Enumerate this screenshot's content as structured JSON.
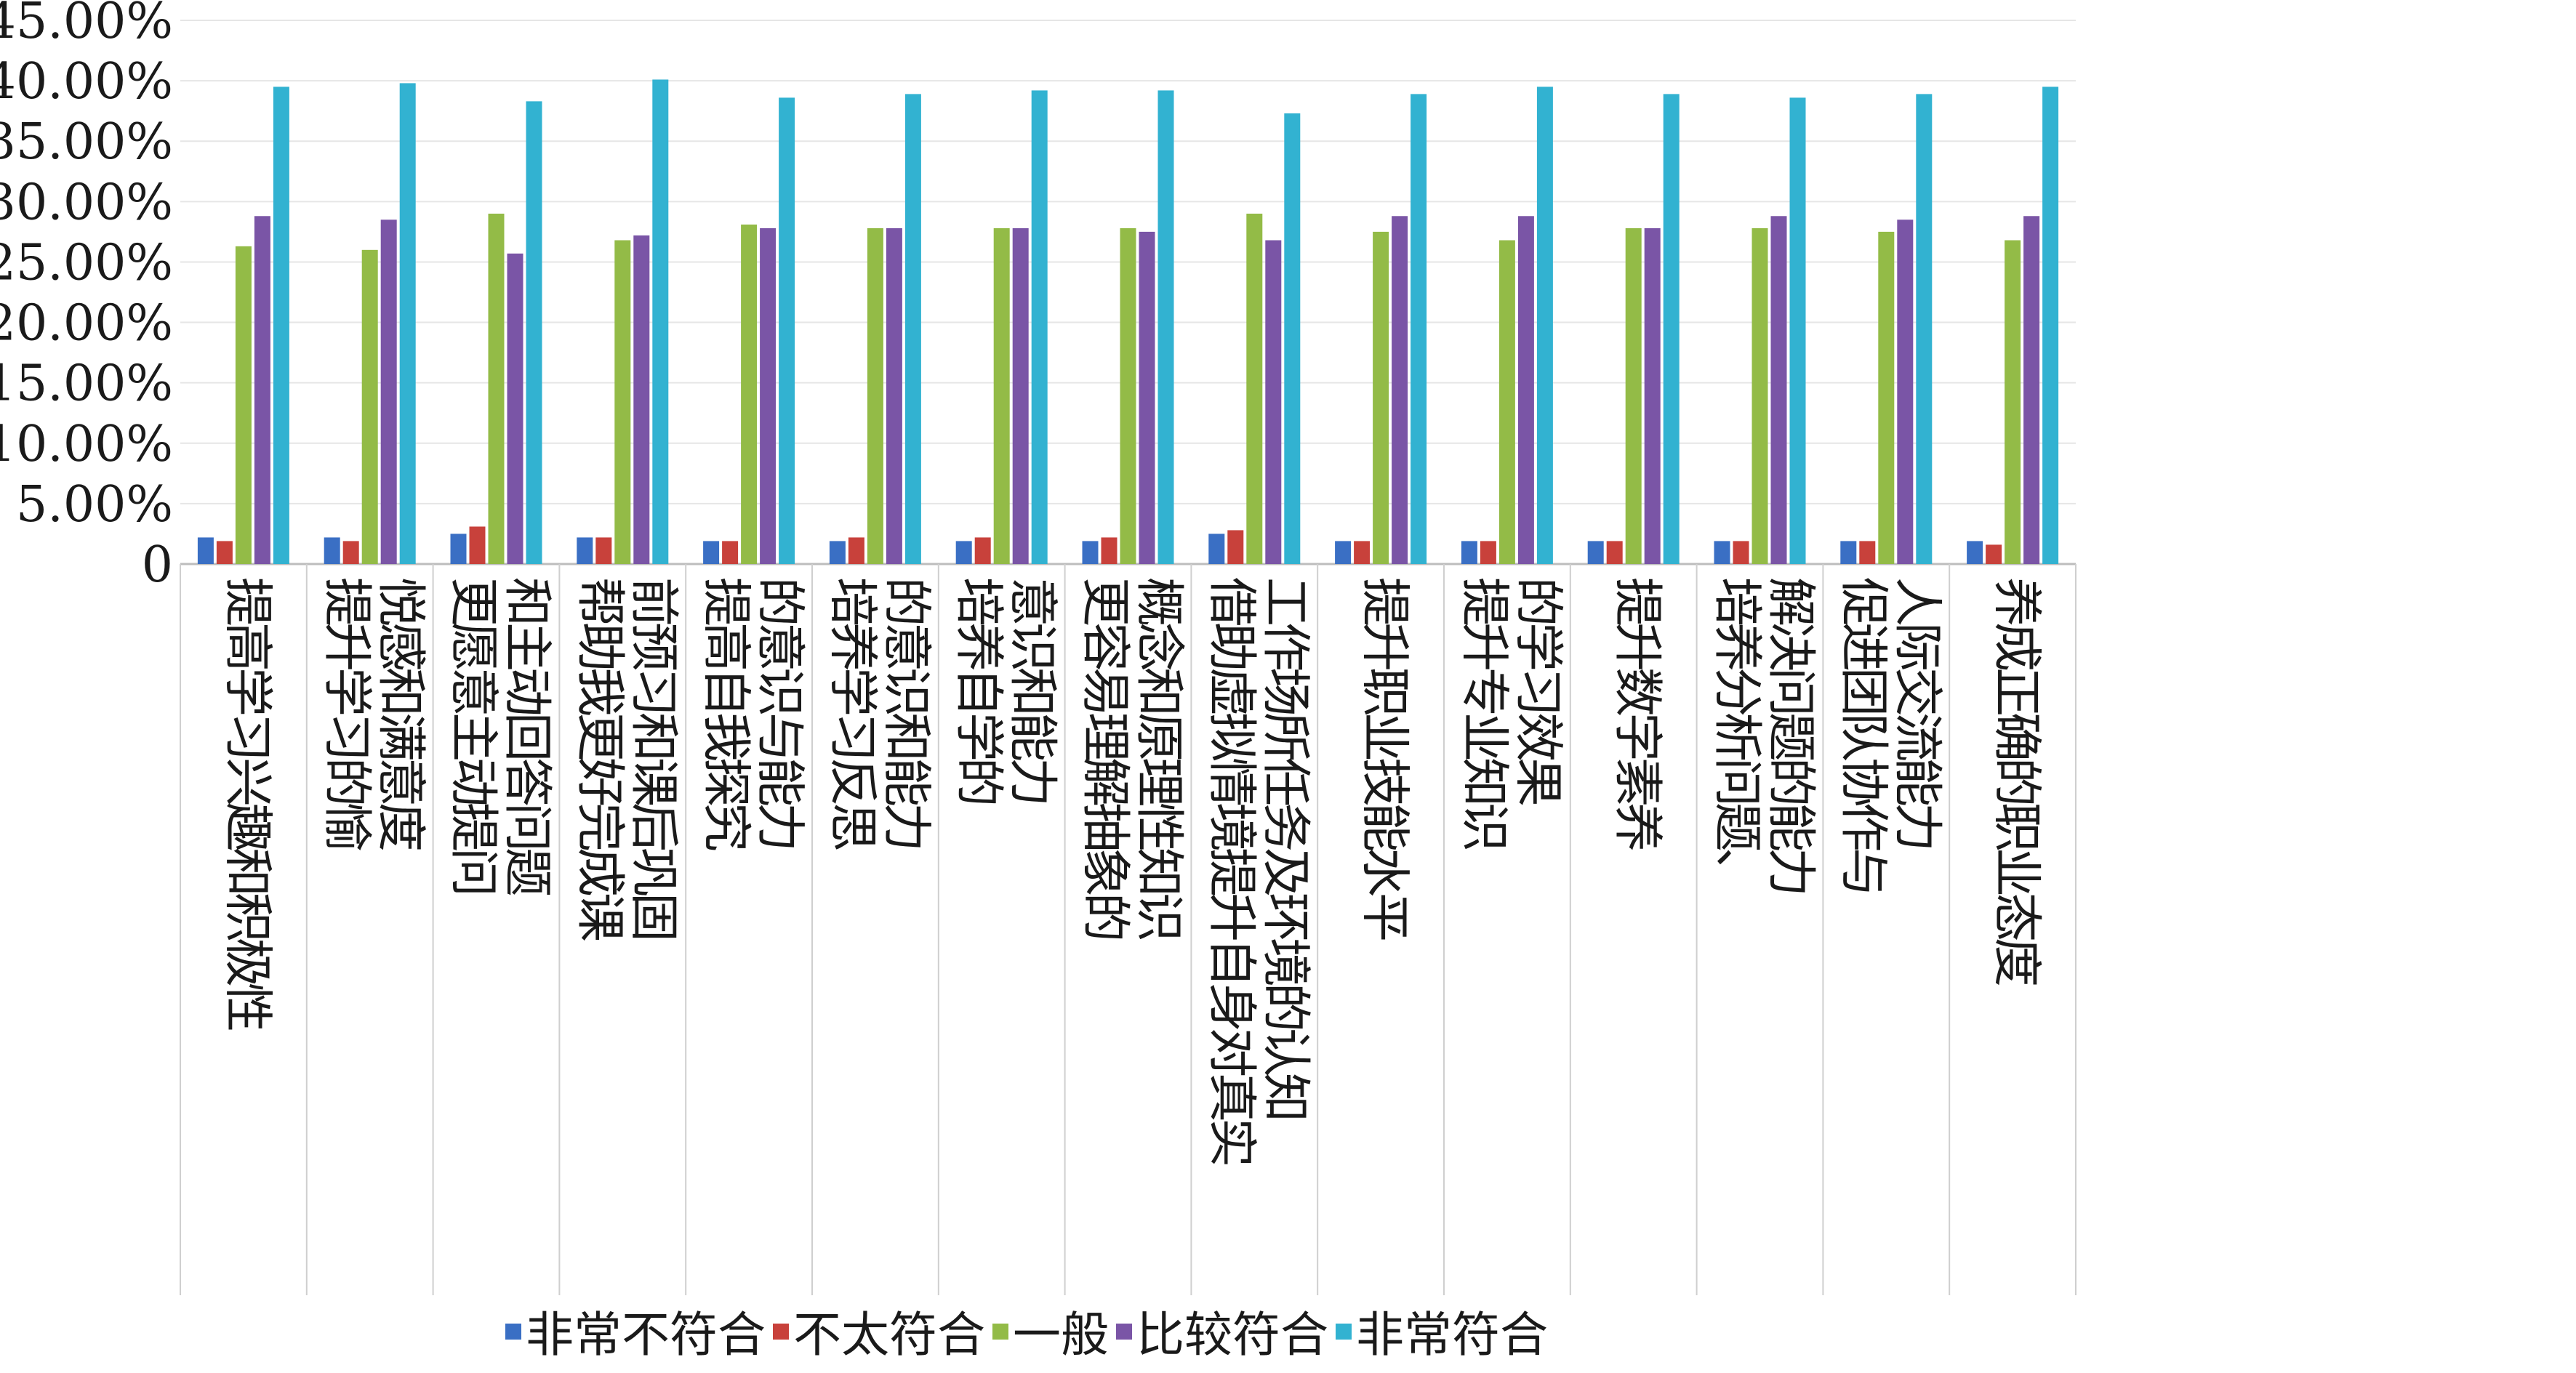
{
  "chart_data": {
    "type": "bar",
    "title": "",
    "xlabel": "",
    "ylabel": "",
    "ylim": [
      0,
      0.45
    ],
    "yticks": [
      {
        "value": 0,
        "label": "0"
      },
      {
        "value": 0.05,
        "label": "5.00%"
      },
      {
        "value": 0.1,
        "label": "10.00%"
      },
      {
        "value": 0.15,
        "label": "15.00%"
      },
      {
        "value": 0.2,
        "label": "20.00%"
      },
      {
        "value": 0.25,
        "label": "25.00%"
      },
      {
        "value": 0.3,
        "label": "30.00%"
      },
      {
        "value": 0.35,
        "label": "35.00%"
      },
      {
        "value": 0.4,
        "label": "40.00%"
      },
      {
        "value": 0.45,
        "label": "45.00%"
      }
    ],
    "grid": true,
    "legend_position": "bottom",
    "categories": [
      [
        "提高学习兴趣和积极性"
      ],
      [
        "提升学习的愉",
        "悦感和满意度"
      ],
      [
        "更愿意主动提问",
        "和主动回答问题"
      ],
      [
        "帮助我更好完成课",
        "前预习和课后巩固"
      ],
      [
        "提高自我探究",
        "的意识与能力"
      ],
      [
        "培养学习反思",
        "的意识和能力"
      ],
      [
        "培养自学的",
        "意识和能力"
      ],
      [
        "更容易理解抽象的",
        "概念和原理性知识"
      ],
      [
        "借助虚拟情境提升自身对真实",
        "工作场所任务及环境的认知"
      ],
      [
        "提升职业技能水平"
      ],
      [
        "提升专业知识",
        "的学习效果"
      ],
      [
        "提升数字素养"
      ],
      [
        "培养分析问题、",
        "解决问题的能力"
      ],
      [
        "促进团队协作与",
        "人际交流能力"
      ],
      [
        "养成正确的职业态度"
      ]
    ],
    "series": [
      {
        "name": "非常不符合",
        "color": "#3a6fc4",
        "values": [
          0.022,
          0.022,
          0.025,
          0.022,
          0.019,
          0.019,
          0.019,
          0.019,
          0.025,
          0.019,
          0.019,
          0.019,
          0.019,
          0.019,
          0.019
        ]
      },
      {
        "name": "不太符合",
        "color": "#c8413b",
        "values": [
          0.019,
          0.019,
          0.031,
          0.022,
          0.019,
          0.022,
          0.022,
          0.022,
          0.028,
          0.019,
          0.019,
          0.019,
          0.019,
          0.019,
          0.016
        ]
      },
      {
        "name": "一般",
        "color": "#93bb47",
        "values": [
          0.263,
          0.26,
          0.29,
          0.268,
          0.281,
          0.278,
          0.278,
          0.278,
          0.29,
          0.275,
          0.268,
          0.278,
          0.278,
          0.275,
          0.268
        ]
      },
      {
        "name": "比较符合",
        "color": "#7a55a6",
        "values": [
          0.288,
          0.285,
          0.257,
          0.272,
          0.278,
          0.278,
          0.278,
          0.275,
          0.268,
          0.288,
          0.288,
          0.278,
          0.288,
          0.285,
          0.288
        ]
      },
      {
        "name": "非常符合",
        "color": "#32b2d1",
        "values": [
          0.395,
          0.398,
          0.383,
          0.401,
          0.386,
          0.389,
          0.392,
          0.392,
          0.373,
          0.389,
          0.395,
          0.389,
          0.386,
          0.389,
          0.395
        ]
      }
    ]
  }
}
